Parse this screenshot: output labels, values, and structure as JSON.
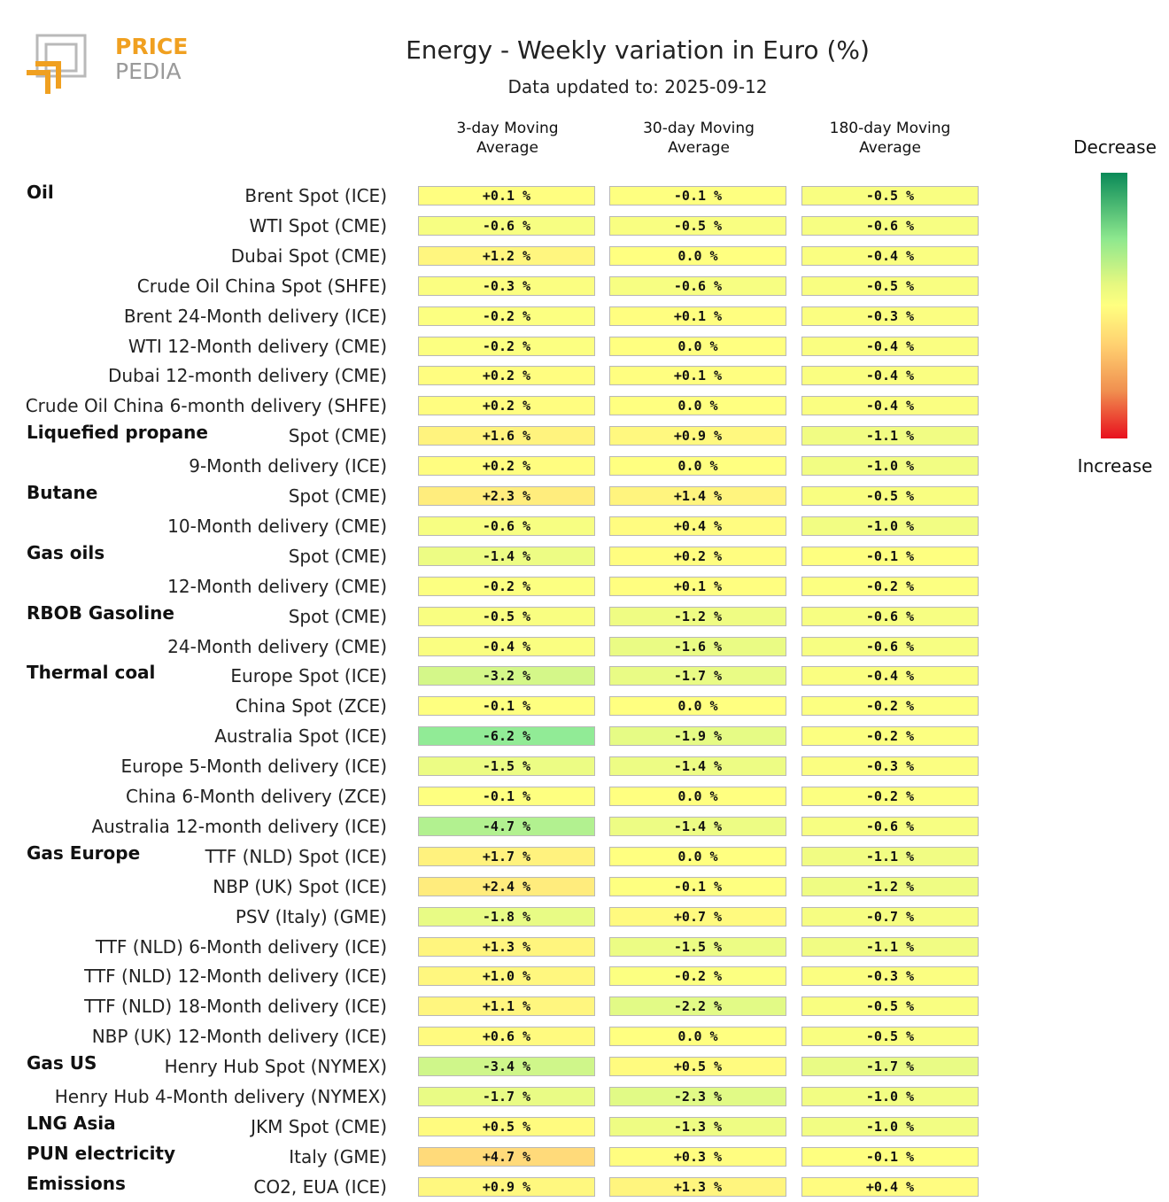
{
  "logo": {
    "line1": "PRICE",
    "line2": "PEDIA"
  },
  "chart_data": {
    "type": "table",
    "title": "Energy - Weekly variation in Euro (%)",
    "subtitle": "Data updated to: 2025-09-12",
    "columns": [
      "3-day Moving Average",
      "30-day Moving Average",
      "180-day Moving Average"
    ],
    "legend": {
      "top": "Decrease",
      "bottom": "Increase"
    },
    "colors": {
      "decrease": "#0a8a58",
      "neutral": "#ffff80",
      "increase": "#e8101e"
    },
    "rows": [
      {
        "group": "Oil",
        "label": "Brent Spot (ICE)",
        "values": [
          0.1,
          -0.1,
          -0.5
        ],
        "texts": [
          "+0.1 %",
          "-0.1 %",
          "-0.5 %"
        ]
      },
      {
        "group": "",
        "label": "WTI Spot (CME)",
        "values": [
          -0.6,
          -0.5,
          -0.6
        ],
        "texts": [
          "-0.6 %",
          "-0.5 %",
          "-0.6 %"
        ]
      },
      {
        "group": "",
        "label": "Dubai Spot (CME)",
        "values": [
          1.2,
          0.0,
          -0.4
        ],
        "texts": [
          "+1.2 %",
          "0.0 %",
          "-0.4 %"
        ]
      },
      {
        "group": "",
        "label": "Crude Oil China Spot (SHFE)",
        "values": [
          -0.3,
          -0.6,
          -0.5
        ],
        "texts": [
          "-0.3 %",
          "-0.6 %",
          "-0.5 %"
        ]
      },
      {
        "group": "",
        "label": "Brent 24-Month delivery (ICE)",
        "values": [
          -0.2,
          0.1,
          -0.3
        ],
        "texts": [
          "-0.2 %",
          "+0.1 %",
          "-0.3 %"
        ]
      },
      {
        "group": "",
        "label": "WTI 12-Month delivery (CME)",
        "values": [
          -0.2,
          0.0,
          -0.4
        ],
        "texts": [
          "-0.2 %",
          "0.0 %",
          "-0.4 %"
        ]
      },
      {
        "group": "",
        "label": "Dubai 12-month delivery (CME)",
        "values": [
          0.2,
          0.1,
          -0.4
        ],
        "texts": [
          "+0.2 %",
          "+0.1 %",
          "-0.4 %"
        ]
      },
      {
        "group": "",
        "label": "Crude Oil China 6-month delivery (SHFE)",
        "values": [
          0.2,
          0.0,
          -0.4
        ],
        "texts": [
          "+0.2 %",
          "0.0 %",
          "-0.4 %"
        ]
      },
      {
        "group": "Liquefied propane",
        "label": "Spot (CME)",
        "values": [
          1.6,
          0.9,
          -1.1
        ],
        "texts": [
          "+1.6 %",
          "+0.9 %",
          "-1.1 %"
        ]
      },
      {
        "group": "",
        "label": "9-Month delivery (ICE)",
        "values": [
          0.2,
          0.0,
          -1.0
        ],
        "texts": [
          "+0.2 %",
          "0.0 %",
          "-1.0 %"
        ]
      },
      {
        "group": "Butane",
        "label": "Spot (CME)",
        "values": [
          2.3,
          1.4,
          -0.5
        ],
        "texts": [
          "+2.3 %",
          "+1.4 %",
          "-0.5 %"
        ]
      },
      {
        "group": "",
        "label": "10-Month delivery (CME)",
        "values": [
          -0.6,
          0.4,
          -1.0
        ],
        "texts": [
          "-0.6 %",
          "+0.4 %",
          "-1.0 %"
        ]
      },
      {
        "group": "Gas oils",
        "label": "Spot (CME)",
        "values": [
          -1.4,
          0.2,
          -0.1
        ],
        "texts": [
          "-1.4 %",
          "+0.2 %",
          "-0.1 %"
        ]
      },
      {
        "group": "",
        "label": "12-Month delivery (CME)",
        "values": [
          -0.2,
          0.1,
          -0.2
        ],
        "texts": [
          "-0.2 %",
          "+0.1 %",
          "-0.2 %"
        ]
      },
      {
        "group": "RBOB Gasoline",
        "label": "Spot (CME)",
        "values": [
          -0.5,
          -1.2,
          -0.6
        ],
        "texts": [
          "-0.5 %",
          "-1.2 %",
          "-0.6 %"
        ]
      },
      {
        "group": "",
        "label": "24-Month delivery (CME)",
        "values": [
          -0.4,
          -1.6,
          -0.6
        ],
        "texts": [
          "-0.4 %",
          "-1.6 %",
          "-0.6 %"
        ]
      },
      {
        "group": "Thermal coal",
        "label": "Europe Spot (ICE)",
        "values": [
          -3.2,
          -1.7,
          -0.4
        ],
        "texts": [
          "-3.2 %",
          "-1.7 %",
          "-0.4 %"
        ]
      },
      {
        "group": "",
        "label": "China Spot (ZCE)",
        "values": [
          -0.1,
          0.0,
          -0.2
        ],
        "texts": [
          "-0.1 %",
          "0.0 %",
          "-0.2 %"
        ]
      },
      {
        "group": "",
        "label": "Australia Spot (ICE)",
        "values": [
          -6.2,
          -1.9,
          -0.2
        ],
        "texts": [
          "-6.2 %",
          "-1.9 %",
          "-0.2 %"
        ]
      },
      {
        "group": "",
        "label": "Europe 5-Month delivery (ICE)",
        "values": [
          -1.5,
          -1.4,
          -0.3
        ],
        "texts": [
          "-1.5 %",
          "-1.4 %",
          "-0.3 %"
        ]
      },
      {
        "group": "",
        "label": "China 6-Month delivery (ZCE)",
        "values": [
          -0.1,
          0.0,
          -0.2
        ],
        "texts": [
          "-0.1 %",
          "0.0 %",
          "-0.2 %"
        ]
      },
      {
        "group": "",
        "label": "Australia 12-month delivery (ICE)",
        "values": [
          -4.7,
          -1.4,
          -0.6
        ],
        "texts": [
          "-4.7 %",
          "-1.4 %",
          "-0.6 %"
        ]
      },
      {
        "group": "Gas Europe",
        "label": "TTF (NLD) Spot (ICE)",
        "values": [
          1.7,
          0.0,
          -1.1
        ],
        "texts": [
          "+1.7 %",
          "0.0 %",
          "-1.1 %"
        ]
      },
      {
        "group": "",
        "label": "NBP (UK) Spot (ICE)",
        "values": [
          2.4,
          -0.1,
          -1.2
        ],
        "texts": [
          "+2.4 %",
          "-0.1 %",
          "-1.2 %"
        ]
      },
      {
        "group": "",
        "label": "PSV (Italy) (GME)",
        "values": [
          -1.8,
          0.7,
          -0.7
        ],
        "texts": [
          "-1.8 %",
          "+0.7 %",
          "-0.7 %"
        ]
      },
      {
        "group": "",
        "label": "TTF (NLD) 6-Month delivery (ICE)",
        "values": [
          1.3,
          -1.5,
          -1.1
        ],
        "texts": [
          "+1.3 %",
          "-1.5 %",
          "-1.1 %"
        ]
      },
      {
        "group": "",
        "label": "TTF (NLD) 12-Month delivery (ICE)",
        "values": [
          1.0,
          -0.2,
          -0.3
        ],
        "texts": [
          "+1.0 %",
          "-0.2 %",
          "-0.3 %"
        ]
      },
      {
        "group": "",
        "label": "TTF (NLD) 18-Month delivery (ICE)",
        "values": [
          1.1,
          -2.2,
          -0.5
        ],
        "texts": [
          "+1.1 %",
          "-2.2 %",
          "-0.5 %"
        ]
      },
      {
        "group": "",
        "label": "NBP (UK) 12-Month delivery (ICE)",
        "values": [
          0.6,
          0.0,
          -0.5
        ],
        "texts": [
          "+0.6 %",
          "0.0 %",
          "-0.5 %"
        ]
      },
      {
        "group": "Gas US",
        "label": "Henry Hub Spot (NYMEX)",
        "values": [
          -3.4,
          0.5,
          -1.7
        ],
        "texts": [
          "-3.4 %",
          "+0.5 %",
          "-1.7 %"
        ]
      },
      {
        "group": "",
        "label": "Henry Hub 4-Month delivery (NYMEX)",
        "values": [
          -1.7,
          -2.3,
          -1.0
        ],
        "texts": [
          "-1.7 %",
          "-2.3 %",
          "-1.0 %"
        ]
      },
      {
        "group": "LNG Asia",
        "label": "JKM Spot (CME)",
        "values": [
          0.5,
          -1.3,
          -1.0
        ],
        "texts": [
          "+0.5 %",
          "-1.3 %",
          "-1.0 %"
        ]
      },
      {
        "group": "PUN electricity",
        "label": "Italy (GME)",
        "values": [
          4.7,
          0.3,
          -0.1
        ],
        "texts": [
          "+4.7 %",
          "+0.3 %",
          "-0.1 %"
        ]
      },
      {
        "group": "Emissions",
        "label": "CO2, EUA (ICE)",
        "values": [
          0.9,
          1.3,
          0.4
        ],
        "texts": [
          "+0.9 %",
          "+1.3 %",
          "+0.4 %"
        ]
      }
    ]
  }
}
